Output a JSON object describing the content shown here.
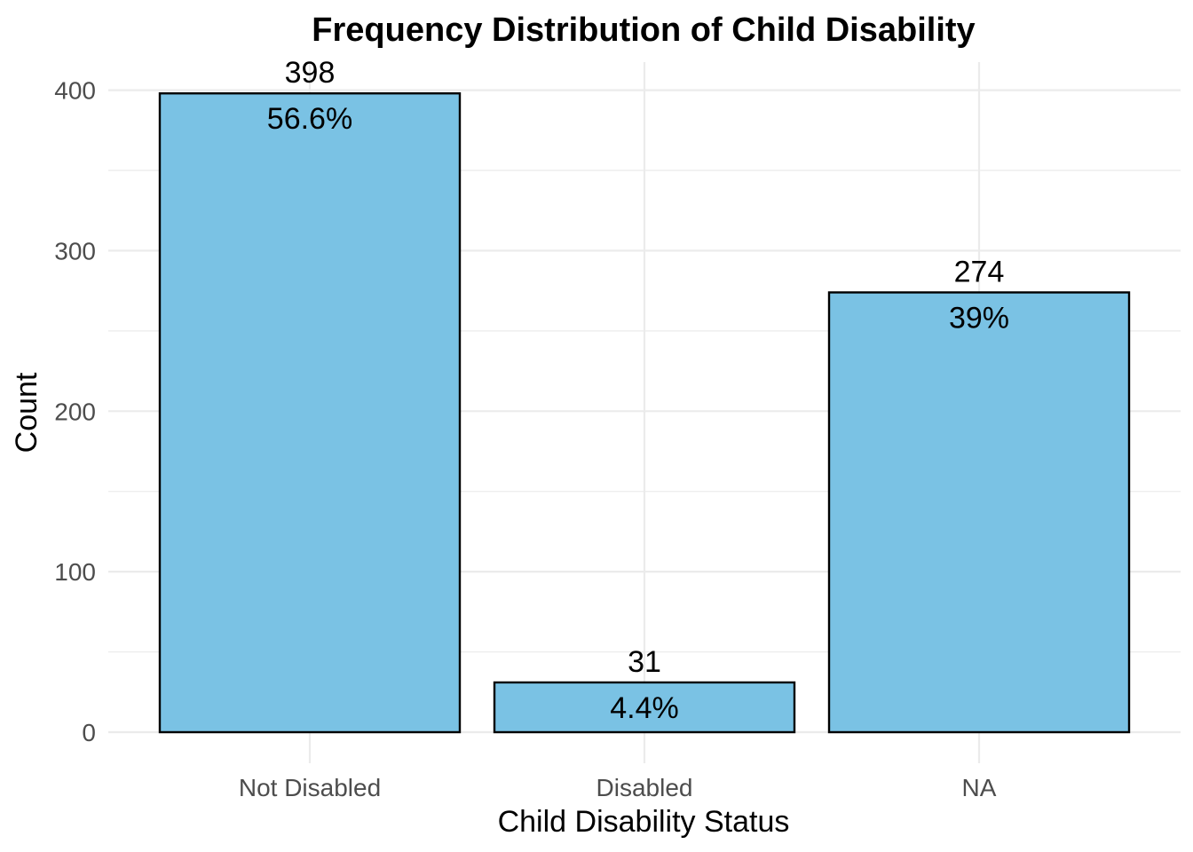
{
  "chart_data": {
    "type": "bar",
    "title": "Frequency Distribution of Child Disability",
    "xlabel": "Child Disability Status",
    "ylabel": "Count",
    "categories": [
      "Not Disabled",
      "Disabled",
      "NA"
    ],
    "values": [
      398,
      31,
      274
    ],
    "percent_labels": [
      "56.6%",
      "4.4%",
      "39%"
    ],
    "count_labels": [
      "398",
      "31",
      "274"
    ],
    "ylim": [
      0,
      420
    ],
    "yticks": [
      0,
      100,
      200,
      300,
      400
    ],
    "ytick_labels": [
      "0",
      "100",
      "200",
      "300",
      "400"
    ],
    "grid": true,
    "legend": "none",
    "bar_color": "#7AC2E4",
    "bar_edge_color": "#000000"
  }
}
